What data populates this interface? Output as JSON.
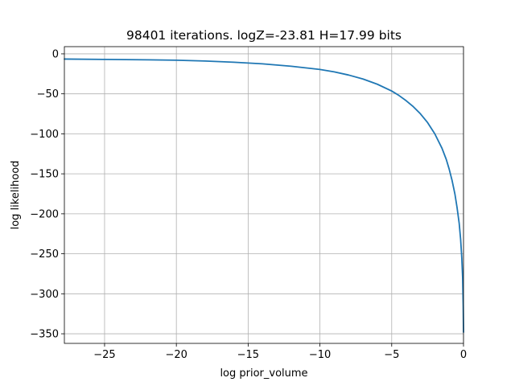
{
  "chart_data": {
    "type": "line",
    "title": "98401 iterations. logZ=-23.81 H=17.99 bits",
    "xlabel": "log prior_volume",
    "ylabel": "log likelihood",
    "xlim": [
      -27.8,
      0
    ],
    "ylim": [
      -362,
      9
    ],
    "grid": true,
    "x_ticks": [
      -25,
      -20,
      -15,
      -10,
      -5,
      0
    ],
    "x_tick_labels": [
      "−25",
      "−20",
      "−15",
      "−10",
      "−5",
      "0"
    ],
    "y_ticks": [
      0,
      -50,
      -100,
      -150,
      -200,
      -250,
      -300,
      -350
    ],
    "y_tick_labels": [
      "0",
      "−50",
      "−100",
      "−150",
      "−200",
      "−250",
      "−300",
      "−350"
    ],
    "series": [
      {
        "color": "#1f77b4",
        "x": [
          -27.8,
          -25,
          -22,
          -20,
          -18,
          -16,
          -14,
          -12,
          -10,
          -9,
          -8,
          -7,
          -6,
          -5,
          -4.5,
          -4,
          -3.5,
          -3,
          -2.5,
          -2,
          -1.5,
          -1.2,
          -1.0,
          -0.8,
          -0.6,
          -0.45,
          -0.3,
          -0.2,
          -0.12,
          -0.06,
          -0.02,
          0
        ],
        "y": [
          -6.5,
          -7,
          -7.5,
          -8,
          -9,
          -10.5,
          -12.5,
          -15.5,
          -19.5,
          -22.5,
          -26.5,
          -31.5,
          -38,
          -46.5,
          -52,
          -58.5,
          -66,
          -75,
          -86,
          -100,
          -118,
          -132,
          -144,
          -158,
          -175,
          -192,
          -212,
          -232,
          -255,
          -280,
          -315,
          -348
        ]
      }
    ]
  }
}
